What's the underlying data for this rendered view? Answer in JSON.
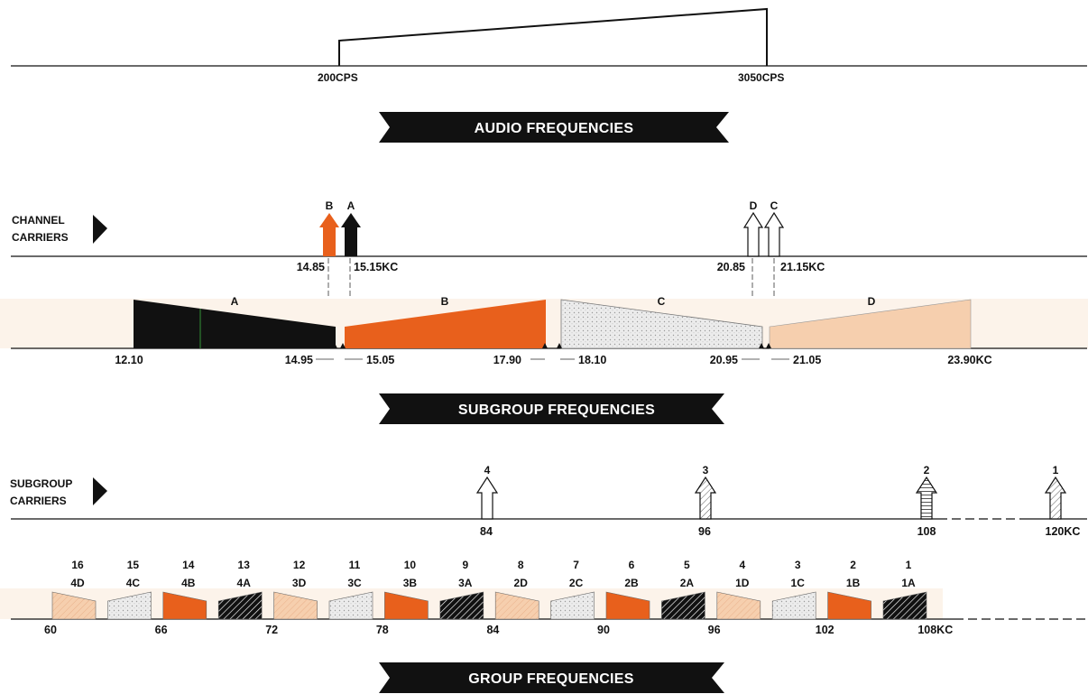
{
  "colors": {
    "black": "#111111",
    "orange": "#e8601c",
    "peach": "#f6cfae",
    "dotted_gray": "#e4e4e4",
    "banner": "#111111",
    "band": "#fcf3ea"
  },
  "audio": {
    "low_label": "200CPS",
    "high_label": "3050CPS",
    "banner": "AUDIO FREQUENCIES"
  },
  "channel": {
    "side_label_line1": "CHANNEL",
    "side_label_line2": "CARRIERS",
    "arrows": [
      {
        "letter": "B",
        "style": "orange"
      },
      {
        "letter": "A",
        "style": "black"
      },
      {
        "letter": "D",
        "style": "outline"
      },
      {
        "letter": "C",
        "style": "outline"
      }
    ],
    "freq_labels": [
      "14.85",
      "15.15KC",
      "20.85",
      "21.15KC"
    ]
  },
  "subgroup": {
    "channels": [
      {
        "letter": "A",
        "style": "black"
      },
      {
        "letter": "B",
        "style": "orange"
      },
      {
        "letter": "C",
        "style": "dotted"
      },
      {
        "letter": "D",
        "style": "peach"
      }
    ],
    "freq_labels": [
      "12.10",
      "14.95",
      "15.05",
      "17.90",
      "18.10",
      "20.95",
      "21.05",
      "23.90KC"
    ],
    "banner": "SUBGROUP FREQUENCIES"
  },
  "subgroup_carriers": {
    "side_label_line1": "SUBGROUP",
    "side_label_line2": "CARRIERS",
    "arrows": [
      {
        "number": "4",
        "freq": "84",
        "pattern": "plain"
      },
      {
        "number": "3",
        "freq": "96",
        "pattern": "diag"
      },
      {
        "number": "2",
        "freq": "108",
        "pattern": "horiz"
      },
      {
        "number": "1",
        "freq": "120KC",
        "pattern": "diag"
      }
    ]
  },
  "group": {
    "blocks": [
      {
        "num": "16",
        "code": "4D",
        "fill": "peach"
      },
      {
        "num": "15",
        "code": "4C",
        "fill": "dotted"
      },
      {
        "num": "14",
        "code": "4B",
        "fill": "orange"
      },
      {
        "num": "13",
        "code": "4A",
        "fill": "black"
      },
      {
        "num": "12",
        "code": "3D",
        "fill": "peach"
      },
      {
        "num": "11",
        "code": "3C",
        "fill": "dotted"
      },
      {
        "num": "10",
        "code": "3B",
        "fill": "orange"
      },
      {
        "num": "9",
        "code": "3A",
        "fill": "black"
      },
      {
        "num": "8",
        "code": "2D",
        "fill": "peach"
      },
      {
        "num": "7",
        "code": "2C",
        "fill": "dotted"
      },
      {
        "num": "6",
        "code": "2B",
        "fill": "orange"
      },
      {
        "num": "5",
        "code": "2A",
        "fill": "black"
      },
      {
        "num": "4",
        "code": "1D",
        "fill": "peach"
      },
      {
        "num": "3",
        "code": "1C",
        "fill": "dotted"
      },
      {
        "num": "2",
        "code": "1B",
        "fill": "orange"
      },
      {
        "num": "1",
        "code": "1A",
        "fill": "black"
      }
    ],
    "freq_labels": [
      "60",
      "66",
      "72",
      "78",
      "84",
      "90",
      "96",
      "102",
      "108KC"
    ],
    "banner": "GROUP FREQUENCIES"
  }
}
